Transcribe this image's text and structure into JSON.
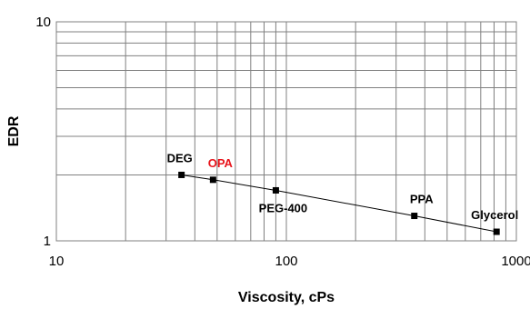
{
  "chart_data": {
    "type": "scatter",
    "xlabel": "Viscosity, cPs",
    "ylabel": "EDR",
    "xscale": "log",
    "yscale": "log",
    "xlim": [
      10,
      1000
    ],
    "ylim": [
      1,
      10
    ],
    "x_ticks": [
      {
        "value": 10,
        "label": "10"
      },
      {
        "value": 100,
        "label": "100"
      },
      {
        "value": 1000,
        "label": "1000"
      }
    ],
    "y_ticks": [
      {
        "value": 1,
        "label": "1"
      },
      {
        "value": 10,
        "label": "10"
      }
    ],
    "grid": true,
    "marker": "square",
    "line_color": "#000000",
    "grid_color": "#808080",
    "points": [
      {
        "label": "DEG",
        "x": 35,
        "y": 2.0,
        "label_color": "#000000",
        "label_position": "above-left"
      },
      {
        "label": "OPA",
        "x": 48,
        "y": 1.9,
        "label_color": "#e8141b",
        "label_position": "above"
      },
      {
        "label": "PEG-400",
        "x": 90,
        "y": 1.7,
        "label_color": "#000000",
        "label_position": "below"
      },
      {
        "label": "PPA",
        "x": 360,
        "y": 1.3,
        "label_color": "#000000",
        "label_position": "above"
      },
      {
        "label": "Glycerol",
        "x": 820,
        "y": 1.1,
        "label_color": "#000000",
        "label_position": "above-left"
      }
    ]
  }
}
